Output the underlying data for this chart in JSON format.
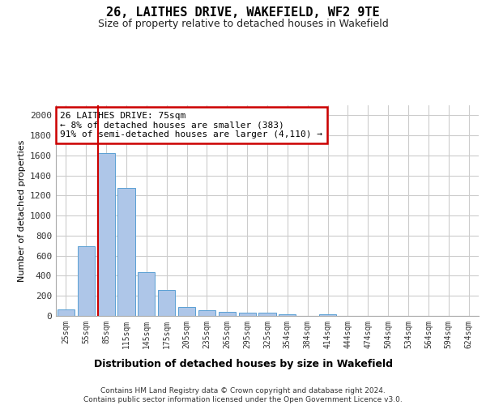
{
  "title": "26, LAITHES DRIVE, WAKEFIELD, WF2 9TE",
  "subtitle": "Size of property relative to detached houses in Wakefield",
  "xlabel": "Distribution of detached houses by size in Wakefield",
  "ylabel": "Number of detached properties",
  "categories": [
    "25sqm",
    "55sqm",
    "85sqm",
    "115sqm",
    "145sqm",
    "175sqm",
    "205sqm",
    "235sqm",
    "265sqm",
    "295sqm",
    "325sqm",
    "354sqm",
    "384sqm",
    "414sqm",
    "444sqm",
    "474sqm",
    "504sqm",
    "534sqm",
    "564sqm",
    "594sqm",
    "624sqm"
  ],
  "values": [
    65,
    695,
    1625,
    1275,
    435,
    255,
    90,
    55,
    40,
    30,
    30,
    15,
    0,
    20,
    0,
    0,
    0,
    0,
    0,
    0,
    0
  ],
  "bar_color": "#aec6e8",
  "bar_edge_color": "#5a9fd4",
  "annotation_line_bin": 2,
  "annotation_line_color": "#cc0000",
  "annotation_box_text": "26 LAITHES DRIVE: 75sqm\n← 8% of detached houses are smaller (383)\n91% of semi-detached houses are larger (4,110) →",
  "annotation_box_color": "#cc0000",
  "footer_text": "Contains HM Land Registry data © Crown copyright and database right 2024.\nContains public sector information licensed under the Open Government Licence v3.0.",
  "ylim": [
    0,
    2100
  ],
  "yticks": [
    0,
    200,
    400,
    600,
    800,
    1000,
    1200,
    1400,
    1600,
    1800,
    2000
  ],
  "background_color": "#ffffff",
  "grid_color": "#cccccc"
}
